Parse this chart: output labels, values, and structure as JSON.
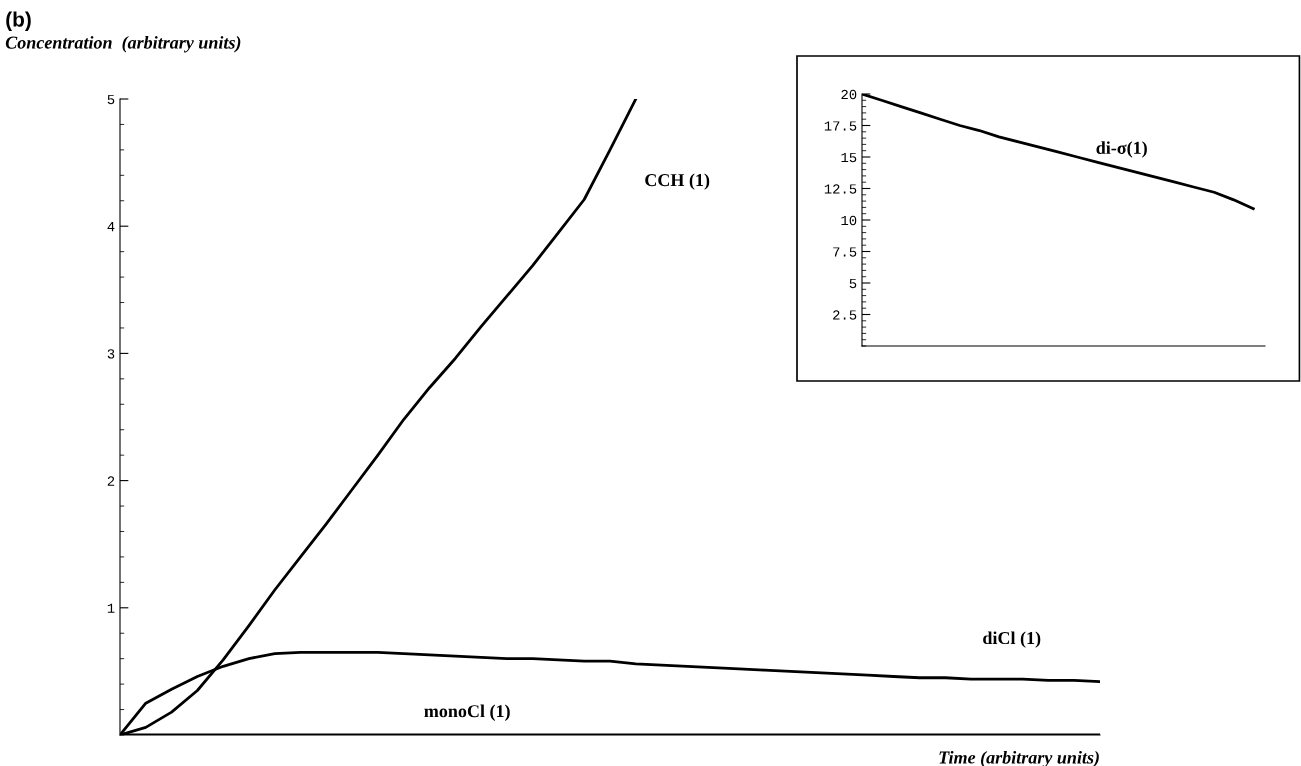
{
  "chart_data": [
    {
      "type": "line",
      "title": "(b)",
      "ylabel": "Concentration  (arbitrary units)",
      "xlabel": "Time (arbitrary units)",
      "categories": [
        null,
        null,
        null,
        null,
        null,
        null,
        null,
        null,
        null,
        null,
        null,
        null,
        null,
        null,
        null,
        null,
        null,
        null,
        null,
        null,
        null,
        null,
        null,
        null,
        null,
        null,
        null,
        null,
        null,
        null,
        null,
        null,
        null,
        null,
        null,
        null,
        null,
        null,
        null
      ],
      "ylim": [
        0,
        5
      ],
      "yticks": [
        1,
        2,
        3,
        4,
        5
      ],
      "tick_labels": "y",
      "grid": false,
      "legend": false,
      "marker": "none",
      "line_style": "solid",
      "series": [
        {
          "name": "CCH (1)",
          "color": "#000000",
          "values": [
            0,
            0.06,
            0.18,
            0.35,
            0.59,
            0.86,
            1.14,
            1.4,
            1.66,
            1.93,
            2.2,
            2.48,
            2.73,
            2.96,
            3.21,
            3.45,
            3.69,
            3.95,
            4.21,
            4.6,
            5,
            null,
            null,
            null,
            null,
            null,
            null,
            null,
            null,
            null,
            null,
            null,
            null,
            null,
            null,
            null,
            null,
            null,
            null
          ]
        },
        {
          "name": "diCl (1)",
          "color": "#000000",
          "values": [
            0,
            0.25,
            0.36,
            0.46,
            0.54,
            0.6,
            0.64,
            0.65,
            0.65,
            0.65,
            0.65,
            0.64,
            0.63,
            0.62,
            0.61,
            0.6,
            0.6,
            0.59,
            0.58,
            0.58,
            0.56,
            0.55,
            0.54,
            0.53,
            0.52,
            0.51,
            0.5,
            0.49,
            0.48,
            0.47,
            0.46,
            0.45,
            0.45,
            0.44,
            0.44,
            0.44,
            0.43,
            0.43,
            0.42
          ]
        },
        {
          "name": "monoCl (1)",
          "color": "#000000",
          "values": [
            0,
            0,
            0,
            0,
            0,
            0,
            0,
            0,
            0,
            0,
            0,
            0,
            0,
            0,
            0,
            0,
            0,
            0,
            0,
            0,
            0,
            0,
            0,
            0,
            0,
            0,
            0,
            0,
            0,
            0,
            0,
            0,
            0,
            0,
            0,
            0,
            0,
            0,
            0
          ]
        }
      ]
    },
    {
      "type": "line",
      "categories": [
        null,
        null,
        null,
        null,
        null,
        null,
        null,
        null,
        null,
        null,
        null,
        null,
        null,
        null,
        null,
        null,
        null,
        null,
        null,
        null,
        null
      ],
      "ylim": [
        0,
        20
      ],
      "yticks": [
        2.5,
        5,
        7.5,
        10,
        12.5,
        15,
        17.5,
        20
      ],
      "tick_labels": "y",
      "grid": false,
      "legend": false,
      "marker": "none",
      "line_style": "solid",
      "series": [
        {
          "name": "di-σ(1)",
          "color": "#000000",
          "values": [
            20,
            19.5,
            19,
            18.5,
            18,
            17.5,
            17.1,
            16.6,
            16.2,
            15.8,
            15.4,
            15,
            14.6,
            14.2,
            13.8,
            13.4,
            13,
            12.6,
            12.2,
            11.6,
            10.9
          ]
        }
      ]
    }
  ]
}
